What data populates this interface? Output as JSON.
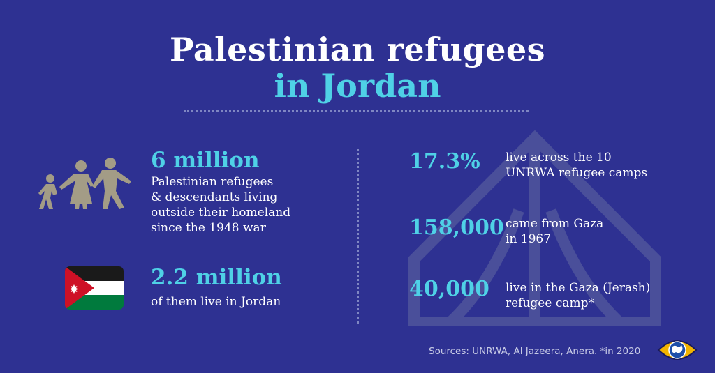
{
  "title": {
    "line1": "Palestinian refugees",
    "line2": "in Jordan"
  },
  "left": {
    "stat1": {
      "value": "6 million",
      "lines": [
        "Palestinian refugees",
        "& descendants living",
        "outside their homeland",
        "since the 1948 war"
      ],
      "icon": "family-icon"
    },
    "stat2": {
      "value": "2.2 million",
      "lines": [
        "of them live in Jordan"
      ],
      "icon": "jordan-flag-icon"
    }
  },
  "right": {
    "stats": [
      {
        "value": "17.3%",
        "lines": [
          "live across the 10",
          "UNRWA refugee camps"
        ]
      },
      {
        "value": "158,000",
        "lines": [
          "came from Gaza",
          "in 1967"
        ]
      },
      {
        "value": "40,000",
        "lines": [
          "live in the Gaza (Jerash)",
          "refugee camp*"
        ]
      }
    ],
    "background_icon": "tent-icon"
  },
  "footer": {
    "sources": "Sources: UNRWA, Al Jazeera, Anera. *in 2020",
    "logo_icon": "eye-globe-logo-icon"
  },
  "colors": {
    "background": "#2e3192",
    "accent": "#4fd1e6",
    "text": "#ffffff",
    "icon": "#a39c86",
    "flag_red": "#ce1126",
    "flag_green": "#007a3d",
    "flag_black": "#1a1a1a",
    "flag_white": "#ffffff"
  }
}
